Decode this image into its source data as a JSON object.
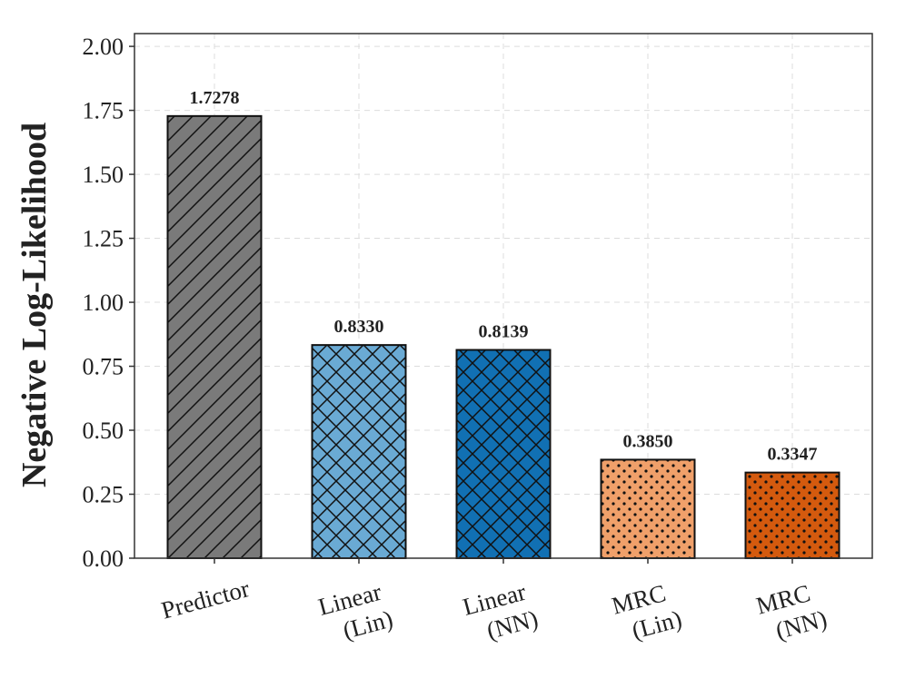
{
  "chart_data": {
    "type": "bar",
    "title": "",
    "xlabel": "",
    "ylabel": "Negative Log-Likelihood",
    "ylim": [
      0,
      2.05
    ],
    "yticks": [
      "0.00",
      "0.25",
      "0.50",
      "0.75",
      "1.00",
      "1.25",
      "1.50",
      "1.75",
      "2.00"
    ],
    "ytick_values": [
      0,
      0.25,
      0.5,
      0.75,
      1.0,
      1.25,
      1.5,
      1.75,
      2.0
    ],
    "grid": true,
    "categories": [
      {
        "lines": [
          "Predictor"
        ],
        "value": 1.7278,
        "value_label": "1.7278",
        "color": "#7a7a7a",
        "hatch": "diagonal"
      },
      {
        "lines": [
          "Linear",
          "(Lin)"
        ],
        "value": 0.833,
        "value_label": "0.8330",
        "color": "#6aaad4",
        "hatch": "crosshatch"
      },
      {
        "lines": [
          "Linear",
          "(NN)"
        ],
        "value": 0.8139,
        "value_label": "0.8139",
        "color": "#1170b3",
        "hatch": "crosshatch"
      },
      {
        "lines": [
          "MRC",
          "(Lin)"
        ],
        "value": 0.385,
        "value_label": "0.3850",
        "color": "#f0a06a",
        "hatch": "dots"
      },
      {
        "lines": [
          "MRC",
          "(NN)"
        ],
        "value": 0.3347,
        "value_label": "0.3347",
        "color": "#d45a0e",
        "hatch": "dots"
      }
    ]
  }
}
